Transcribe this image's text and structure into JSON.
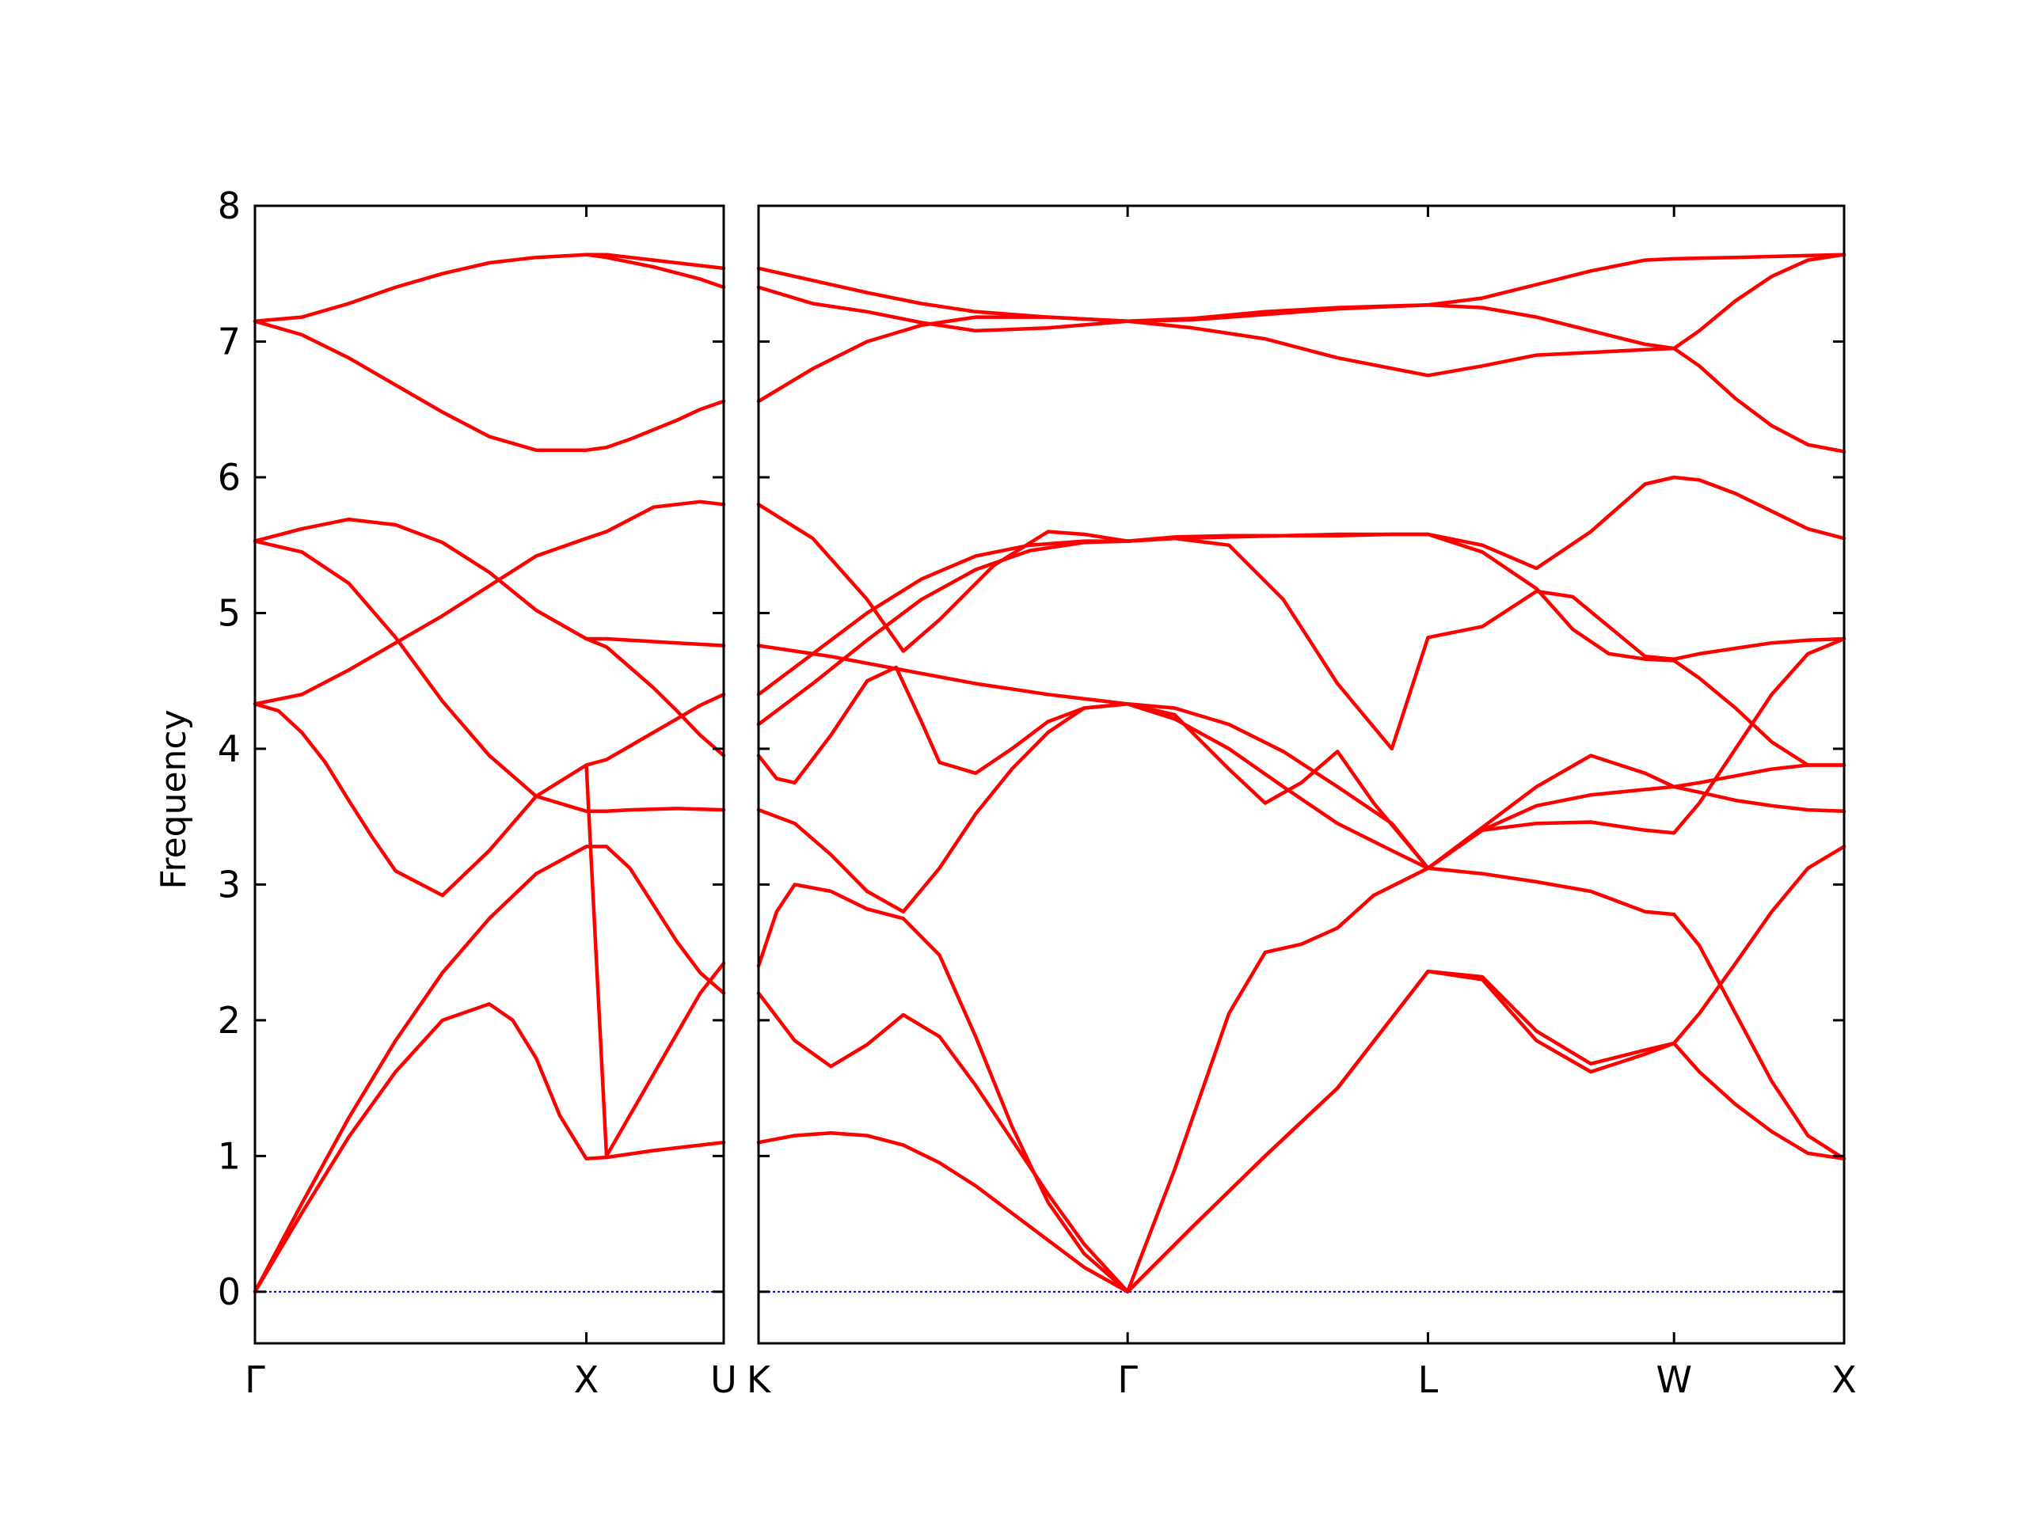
{
  "chart_data": {
    "type": "line",
    "ylabel": "Frequency",
    "ylim": [
      -0.38,
      8.0
    ],
    "yticks": [
      0,
      1,
      2,
      3,
      4,
      5,
      6,
      7,
      8
    ],
    "grid": false,
    "legend": "none",
    "colors": {
      "band": "#ff0000",
      "zero_line": "#0000cc",
      "axes": "#000000"
    },
    "panels": [
      {
        "x_range": [
          0.0,
          1.0
        ],
        "ticks": [
          {
            "x": 0.0,
            "label": "Γ"
          },
          {
            "x": 0.707,
            "label": "X"
          },
          {
            "x": 1.0,
            "label": "U"
          }
        ],
        "bands": [
          {
            "x": [
              0,
              0.1,
              0.2,
              0.3,
              0.4,
              0.5,
              0.55,
              0.6,
              0.65,
              0.707,
              0.75,
              0.85,
              0.95,
              1.0
            ],
            "y": [
              0.0,
              0.58,
              1.14,
              1.62,
              2.0,
              2.12,
              2.0,
              1.72,
              1.3,
              0.98,
              0.99,
              1.04,
              1.08,
              1.1
            ]
          },
          {
            "x": [
              0,
              0.1,
              0.2,
              0.3,
              0.4,
              0.5,
              0.6,
              0.707,
              0.75,
              0.8,
              0.85,
              0.9,
              0.95,
              1.0
            ],
            "y": [
              0.0,
              0.65,
              1.28,
              1.85,
              2.35,
              2.75,
              3.08,
              3.28,
              3.28,
              3.12,
              2.85,
              2.58,
              2.35,
              2.2
            ]
          },
          {
            "x": [
              0,
              0.05,
              0.1,
              0.15,
              0.2,
              0.25,
              0.3,
              0.4,
              0.5,
              0.6,
              0.707,
              0.75,
              0.8,
              0.9,
              0.95,
              1.0
            ],
            "y": [
              4.33,
              4.28,
              4.12,
              3.9,
              3.62,
              3.35,
              3.1,
              2.92,
              3.25,
              3.65,
              3.88,
              1.0,
              1.3,
              1.9,
              2.2,
              2.42
            ]
          },
          {
            "x": [
              0,
              0.1,
              0.2,
              0.3,
              0.4,
              0.5,
              0.6,
              0.707,
              0.75,
              0.8,
              0.9,
              1.0
            ],
            "y": [
              5.53,
              5.45,
              5.22,
              4.82,
              4.35,
              3.95,
              3.65,
              3.54,
              3.54,
              3.55,
              3.56,
              3.55
            ]
          },
          {
            "x": [
              0,
              0.1,
              0.2,
              0.3,
              0.4,
              0.5,
              0.6,
              0.707,
              0.75,
              0.85,
              0.95,
              1.0
            ],
            "y": [
              4.33,
              4.4,
              4.58,
              4.78,
              4.98,
              5.2,
              5.42,
              5.55,
              5.6,
              5.78,
              5.82,
              5.8
            ]
          },
          {
            "x": [
              0,
              0.1,
              0.2,
              0.3,
              0.4,
              0.5,
              0.6,
              0.707,
              0.75,
              0.8,
              0.9,
              1.0
            ],
            "y": [
              5.53,
              5.62,
              5.69,
              5.65,
              5.52,
              5.3,
              5.02,
              4.81,
              4.81,
              4.8,
              4.78,
              4.76
            ]
          },
          {
            "x": [
              0,
              0.1,
              0.2,
              0.3,
              0.4,
              0.5,
              0.6,
              0.707,
              0.75,
              0.8,
              0.85,
              0.9,
              0.95,
              1.0
            ],
            "y": [
              7.15,
              7.05,
              6.88,
              6.68,
              6.48,
              6.3,
              6.2,
              6.2,
              6.22,
              6.28,
              6.35,
              6.42,
              6.5,
              6.56
            ]
          },
          {
            "x": [
              0,
              0.1,
              0.2,
              0.3,
              0.4,
              0.5,
              0.6,
              0.707,
              0.75,
              0.85,
              0.95,
              1.0
            ],
            "y": [
              7.15,
              7.18,
              7.28,
              7.4,
              7.5,
              7.58,
              7.62,
              7.64,
              7.62,
              7.55,
              7.46,
              7.4
            ]
          },
          {
            "x": [
              0.707,
              0.75,
              0.85,
              0.95,
              1.0
            ],
            "y": [
              7.64,
              7.64,
              7.6,
              7.56,
              7.54
            ]
          },
          {
            "x": [
              0.707,
              0.75,
              0.8,
              0.85,
              0.9,
              0.95,
              1.0
            ],
            "y": [
              4.81,
              4.75,
              4.6,
              4.45,
              4.28,
              4.1,
              3.95
            ]
          },
          {
            "x": [
              0.707,
              0.75,
              0.8,
              0.85,
              0.9,
              0.95,
              1.0
            ],
            "y": [
              3.88,
              3.92,
              4.02,
              4.12,
              4.22,
              4.32,
              4.4
            ]
          }
        ]
      },
      {
        "x_range": [
          0.0,
          3.0
        ],
        "ticks": [
          {
            "x": 0.0,
            "label": "K"
          },
          {
            "x": 1.02,
            "label": "Γ"
          },
          {
            "x": 1.85,
            "label": "L"
          },
          {
            "x": 2.53,
            "label": "W"
          },
          {
            "x": 3.0,
            "label": "X"
          }
        ],
        "bands": [
          {
            "x": [
              0,
              0.1,
              0.2,
              0.3,
              0.4,
              0.5,
              0.6,
              0.7,
              0.8,
              0.9,
              1.02,
              1.2,
              1.4,
              1.6,
              1.85,
              2.0,
              2.15,
              2.3,
              2.45,
              2.53,
              2.6,
              2.7,
              2.8,
              2.9,
              3.0
            ],
            "y": [
              1.1,
              1.15,
              1.17,
              1.15,
              1.08,
              0.95,
              0.78,
              0.58,
              0.38,
              0.18,
              0.0,
              0.48,
              1.0,
              1.5,
              2.36,
              2.3,
              1.85,
              1.62,
              1.75,
              1.83,
              1.62,
              1.38,
              1.18,
              1.02,
              0.98
            ]
          },
          {
            "x": [
              0,
              0.1,
              0.2,
              0.3,
              0.4,
              0.5,
              0.6,
              0.7,
              0.8,
              0.9,
              1.02,
              1.2,
              1.4,
              1.6,
              1.85,
              2.0,
              2.15,
              2.3,
              2.45,
              2.53,
              2.6,
              2.7,
              2.8,
              2.9,
              3.0
            ],
            "y": [
              2.2,
              1.85,
              1.66,
              1.82,
              2.04,
              1.88,
              1.52,
              1.12,
              0.72,
              0.35,
              0.0,
              0.48,
              1.0,
              1.5,
              2.36,
              2.32,
              1.92,
              1.68,
              1.78,
              1.83,
              2.05,
              2.42,
              2.8,
              3.12,
              3.28
            ]
          },
          {
            "x": [
              0,
              0.05,
              0.1,
              0.2,
              0.3,
              0.4,
              0.5,
              0.6,
              0.7,
              0.8,
              0.9,
              1.02,
              1.15,
              1.3,
              1.4,
              1.5,
              1.6,
              1.7,
              1.85,
              2.0,
              2.15,
              2.3,
              2.45,
              2.53,
              2.6,
              2.7,
              2.8,
              2.9,
              3.0
            ],
            "y": [
              2.4,
              2.8,
              3.0,
              2.95,
              2.82,
              2.75,
              2.48,
              1.88,
              1.22,
              0.66,
              0.28,
              0.0,
              0.9,
              2.05,
              2.5,
              2.56,
              2.68,
              2.92,
              3.12,
              3.08,
              3.02,
              2.95,
              2.8,
              2.78,
              2.55,
              2.05,
              1.55,
              1.15,
              0.98
            ]
          },
          {
            "x": [
              0,
              0.1,
              0.2,
              0.3,
              0.4,
              0.5,
              0.6,
              0.7,
              0.8,
              0.9,
              1.02,
              1.15,
              1.3,
              1.45,
              1.6,
              1.75,
              1.85,
              2.0,
              2.15,
              2.3,
              2.45,
              2.53,
              2.6,
              2.7,
              2.8,
              2.9,
              3.0
            ],
            "y": [
              3.55,
              3.45,
              3.22,
              2.95,
              2.8,
              3.12,
              3.52,
              3.85,
              4.12,
              4.3,
              4.33,
              4.22,
              4.0,
              3.72,
              3.45,
              3.25,
              3.12,
              3.4,
              3.45,
              3.46,
              3.4,
              3.38,
              3.6,
              4.0,
              4.4,
              4.7,
              4.81
            ]
          },
          {
            "x": [
              0,
              0.05,
              0.1,
              0.2,
              0.3,
              0.38,
              0.45,
              0.5,
              0.6,
              0.7,
              0.8,
              0.9,
              1.02,
              1.15,
              1.3,
              1.4,
              1.5,
              1.6,
              1.7,
              1.85,
              2.0,
              2.15,
              2.3,
              2.45,
              2.53,
              2.6,
              2.7,
              2.8,
              2.9,
              3.0
            ],
            "y": [
              3.95,
              3.78,
              3.75,
              4.1,
              4.5,
              4.6,
              4.2,
              3.9,
              3.82,
              4.0,
              4.2,
              4.3,
              4.33,
              4.25,
              3.85,
              3.6,
              3.75,
              3.98,
              3.6,
              3.12,
              3.4,
              3.58,
              3.66,
              3.7,
              3.72,
              3.75,
              3.8,
              3.85,
              3.88,
              3.88
            ]
          },
          {
            "x": [
              0,
              0.2,
              0.4,
              0.6,
              0.8,
              1.02,
              1.15,
              1.3,
              1.45,
              1.6,
              1.75,
              1.85,
              2.0,
              2.15,
              2.3,
              2.45,
              2.53,
              2.6,
              2.7,
              2.8,
              2.9,
              3.0
            ],
            "y": [
              4.76,
              4.68,
              4.58,
              4.48,
              4.4,
              4.33,
              4.3,
              4.18,
              3.98,
              3.72,
              3.45,
              3.12,
              3.42,
              3.72,
              3.95,
              3.82,
              3.72,
              3.68,
              3.62,
              3.58,
              3.55,
              3.54
            ]
          },
          {
            "x": [
              0,
              0.15,
              0.3,
              0.45,
              0.6,
              0.75,
              0.9,
              1.02,
              1.15,
              1.3,
              1.45,
              1.6,
              1.75,
              1.85,
              2.0,
              2.15,
              2.25,
              2.35,
              2.45,
              2.53,
              2.6,
              2.7,
              2.8,
              2.9,
              3.0
            ],
            "y": [
              4.18,
              4.48,
              4.8,
              5.1,
              5.32,
              5.46,
              5.52,
              5.53,
              5.55,
              5.5,
              5.1,
              4.48,
              4.0,
              4.82,
              4.9,
              5.16,
              5.12,
              4.9,
              4.68,
              4.66,
              4.7,
              4.74,
              4.78,
              4.8,
              4.81
            ]
          },
          {
            "x": [
              0,
              0.15,
              0.3,
              0.4,
              0.5,
              0.65,
              0.8,
              0.9,
              1.02,
              1.15,
              1.3,
              1.45,
              1.6,
              1.75,
              1.85,
              2.0,
              2.15,
              2.25,
              2.35,
              2.45,
              2.53,
              2.6,
              2.7,
              2.8,
              2.9,
              3.0
            ],
            "y": [
              5.8,
              5.55,
              5.1,
              4.72,
              4.95,
              5.35,
              5.6,
              5.58,
              5.53,
              5.56,
              5.57,
              5.57,
              5.58,
              5.58,
              5.58,
              5.45,
              5.18,
              4.88,
              4.7,
              4.66,
              4.65,
              4.52,
              4.3,
              4.05,
              3.88,
              3.88
            ]
          },
          {
            "x": [
              0,
              0.15,
              0.3,
              0.45,
              0.6,
              0.75,
              0.9,
              1.02,
              1.15,
              1.3,
              1.45,
              1.6,
              1.75,
              1.85,
              2.0,
              2.15,
              2.3,
              2.45,
              2.53,
              2.6,
              2.7,
              2.8,
              2.9,
              3.0
            ],
            "y": [
              4.4,
              4.7,
              5.0,
              5.25,
              5.42,
              5.5,
              5.53,
              5.53,
              5.55,
              5.56,
              5.57,
              5.57,
              5.58,
              5.58,
              5.5,
              5.33,
              5.6,
              5.95,
              6.0,
              5.98,
              5.88,
              5.75,
              5.62,
              5.55
            ]
          },
          {
            "x": [
              0,
              0.15,
              0.3,
              0.45,
              0.6,
              0.8,
              1.02,
              1.2,
              1.4,
              1.6,
              1.85,
              2.0,
              2.15,
              2.3,
              2.45,
              2.53,
              2.6,
              2.7,
              2.8,
              2.9,
              3.0
            ],
            "y": [
              6.56,
              6.8,
              7.0,
              7.12,
              7.18,
              7.18,
              7.15,
              7.1,
              7.02,
              6.88,
              6.75,
              6.82,
              6.9,
              6.92,
              6.94,
              6.95,
              6.82,
              6.58,
              6.38,
              6.24,
              6.19
            ]
          },
          {
            "x": [
              0,
              0.15,
              0.3,
              0.45,
              0.6,
              0.8,
              1.02,
              1.2,
              1.4,
              1.6,
              1.85,
              2.0,
              2.15,
              2.3,
              2.45,
              2.53,
              2.6,
              2.7,
              2.8,
              2.9,
              3.0
            ],
            "y": [
              7.4,
              7.28,
              7.22,
              7.14,
              7.08,
              7.1,
              7.15,
              7.17,
              7.22,
              7.25,
              7.27,
              7.25,
              7.18,
              7.08,
              6.98,
              6.95,
              7.08,
              7.3,
              7.48,
              7.6,
              7.64
            ]
          },
          {
            "x": [
              0,
              0.15,
              0.3,
              0.45,
              0.6,
              0.8,
              1.02,
              1.2,
              1.4,
              1.6,
              1.85,
              2.0,
              2.15,
              2.3,
              2.45,
              2.53,
              2.7,
              2.85,
              3.0
            ],
            "y": [
              7.54,
              7.45,
              7.36,
              7.28,
              7.22,
              7.18,
              7.15,
              7.16,
              7.2,
              7.24,
              7.27,
              7.32,
              7.42,
              7.52,
              7.6,
              7.61,
              7.62,
              7.63,
              7.64
            ]
          }
        ]
      }
    ]
  }
}
